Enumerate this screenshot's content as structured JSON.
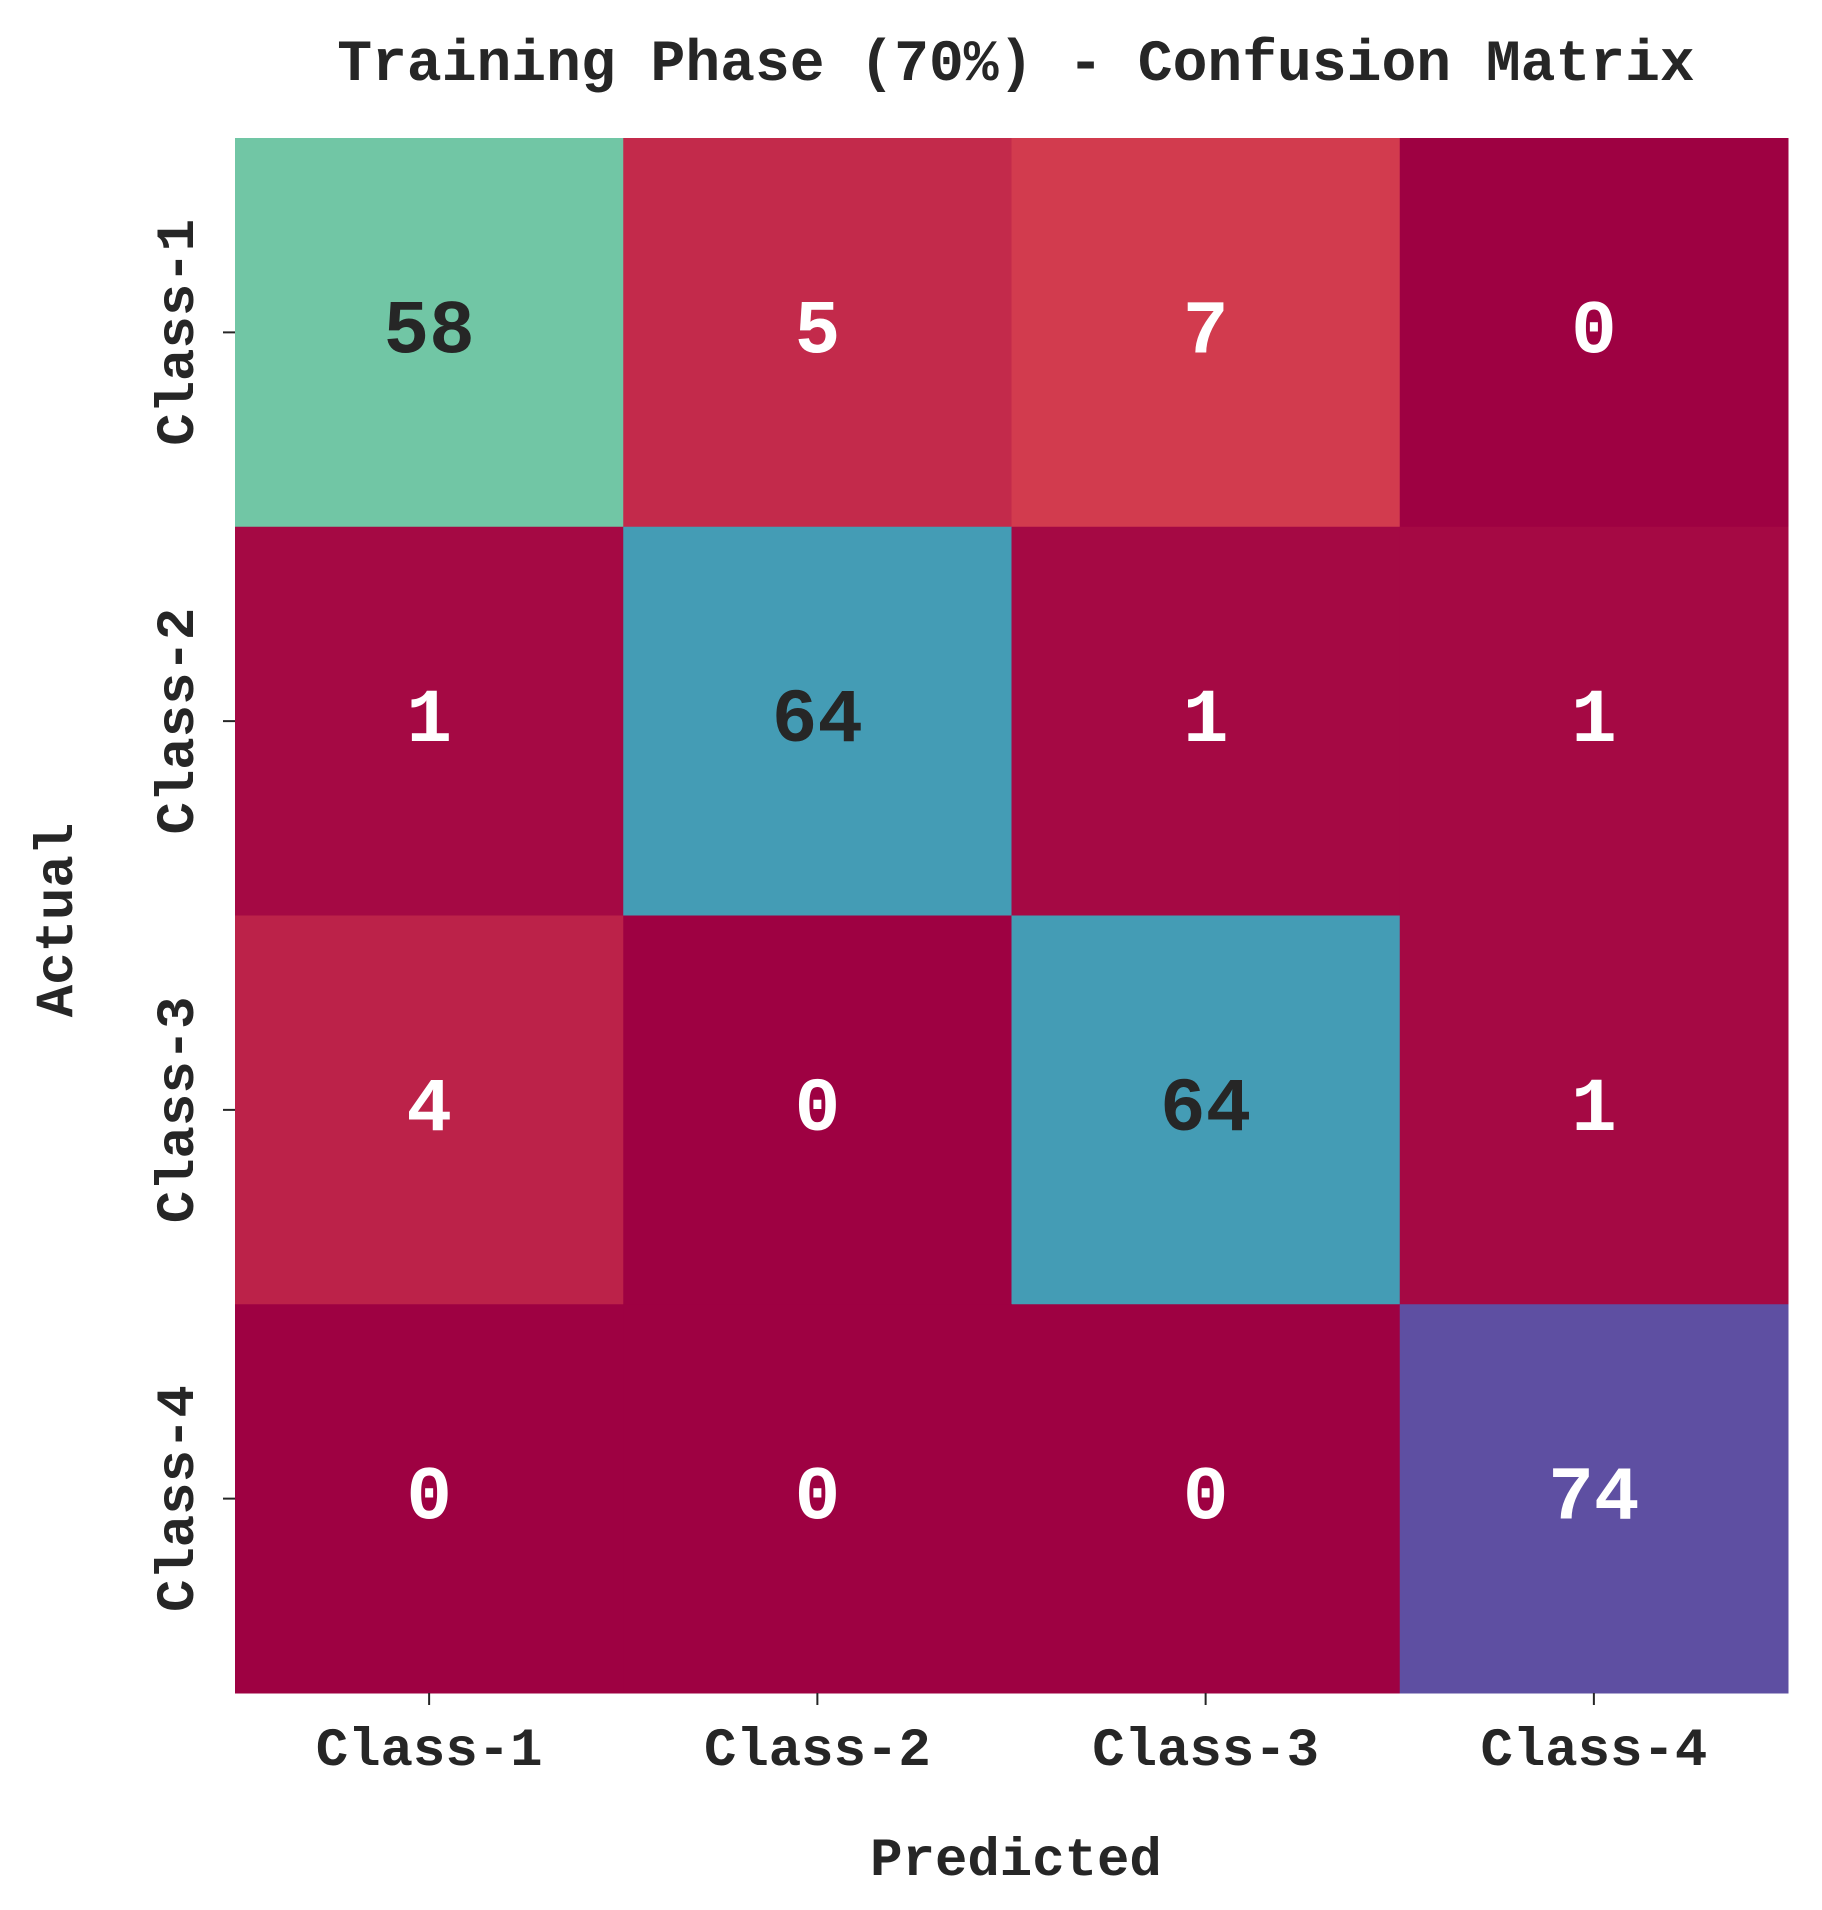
{
  "chart_data": {
    "type": "heatmap",
    "title": "Training Phase (70%) - Confusion Matrix",
    "xlabel": "Predicted",
    "ylabel": "Actual",
    "x_categories": [
      "Class-1",
      "Class-2",
      "Class-3",
      "Class-4"
    ],
    "y_categories": [
      "Class-1",
      "Class-2",
      "Class-3",
      "Class-4"
    ],
    "values": [
      [
        58,
        5,
        7,
        0
      ],
      [
        1,
        64,
        1,
        1
      ],
      [
        4,
        0,
        64,
        1
      ],
      [
        0,
        0,
        0,
        74
      ]
    ],
    "colormap": "Spectral",
    "value_range": [
      0,
      74
    ],
    "colorbar": false
  }
}
